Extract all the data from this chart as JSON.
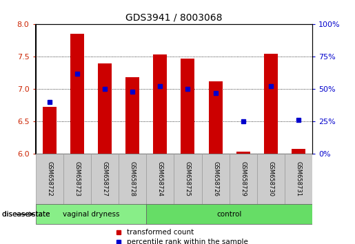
{
  "title": "GDS3941 / 8003068",
  "samples": [
    "GSM658722",
    "GSM658723",
    "GSM658727",
    "GSM658728",
    "GSM658724",
    "GSM658725",
    "GSM658726",
    "GSM658729",
    "GSM658730",
    "GSM658731"
  ],
  "transformed_count": [
    6.72,
    7.85,
    7.4,
    7.18,
    7.53,
    7.47,
    7.12,
    6.03,
    7.55,
    6.07
  ],
  "percentile_rank": [
    40,
    62,
    50,
    48,
    52,
    50,
    47,
    25,
    52,
    26
  ],
  "ylim_left": [
    6.0,
    8.0
  ],
  "ylim_right": [
    0,
    100
  ],
  "yticks_left": [
    6.0,
    6.5,
    7.0,
    7.5,
    8.0
  ],
  "yticks_right": [
    0,
    25,
    50,
    75,
    100
  ],
  "bar_color": "#cc0000",
  "dot_color": "#0000cc",
  "bar_bottom": 6.0,
  "groups": [
    {
      "label": "vaginal dryness",
      "indices": [
        0,
        1,
        2,
        3
      ],
      "color": "#88ee88"
    },
    {
      "label": "control",
      "indices": [
        4,
        5,
        6,
        7,
        8,
        9
      ],
      "color": "#66dd66"
    }
  ],
  "disease_state_label": "disease state",
  "legend_bar_label": "transformed count",
  "legend_dot_label": "percentile rank within the sample",
  "grid_style": "dotted",
  "axis_label_color_left": "#cc2200",
  "axis_label_color_right": "#0000cc",
  "bg_color": "#ffffff",
  "tick_area_bg": "#cccccc",
  "figsize": [
    5.15,
    3.54
  ],
  "dpi": 100
}
